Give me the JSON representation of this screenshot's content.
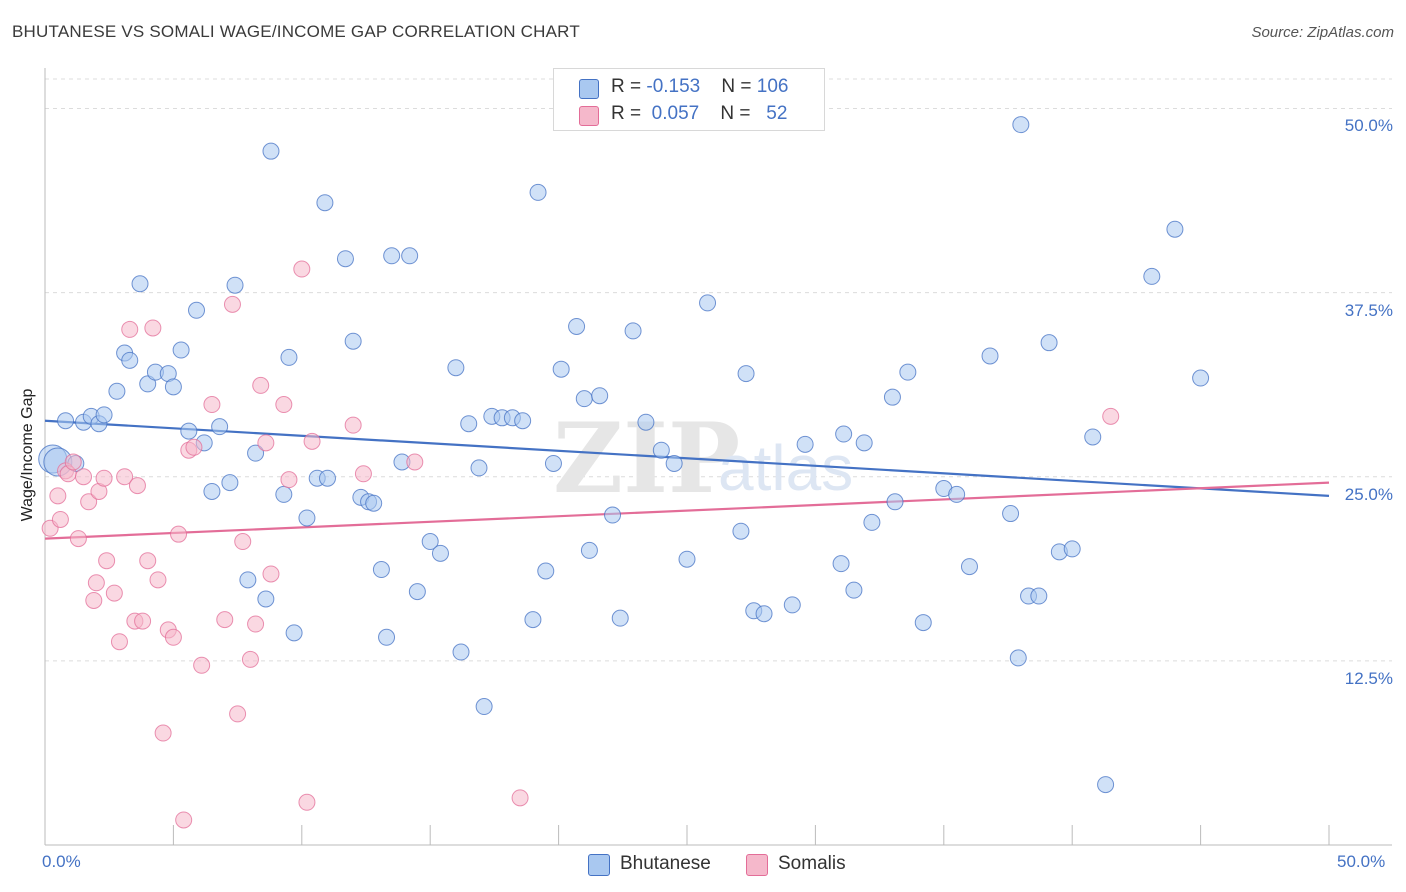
{
  "title": "BHUTANESE VS SOMALI WAGE/INCOME GAP CORRELATION CHART",
  "source": "Source: ZipAtlas.com",
  "legend_top": {
    "rows": [
      {
        "r_label": "R = ",
        "r_value": "-0.153",
        "n_label": "N = ",
        "n_value": "106",
        "color": "#a9c8f0"
      },
      {
        "r_label": "R = ",
        "r_value": " 0.057",
        "n_label": "N = ",
        "n_value": "  52",
        "color": "#f5b8cb"
      }
    ]
  },
  "chart_data": {
    "type": "scatter",
    "title": "BHUTANESE VS SOMALI WAGE/INCOME GAP CORRELATION CHART",
    "xlabel": "",
    "ylabel": "Wage/Income Gap",
    "xlim": [
      0,
      50
    ],
    "ylim": [
      0,
      52
    ],
    "x_tick_labels": [
      "0.0%",
      "50.0%"
    ],
    "y_ticks": [
      12.5,
      25.0,
      37.5,
      50.0
    ],
    "y_tick_labels": [
      "12.5%",
      "25.0%",
      "37.5%",
      "50.0%"
    ],
    "grid": true,
    "legend_position": "bottom",
    "series": [
      {
        "name": "Bhutanese",
        "color": "#4472c4",
        "fill": "#a9c8f0",
        "trend": {
          "x": [
            0,
            50
          ],
          "y": [
            28.8,
            23.7
          ]
        },
        "points": [
          [
            0.3,
            26.2
          ],
          [
            0.5,
            26
          ],
          [
            1.2,
            25.9
          ],
          [
            0.8,
            28.8
          ],
          [
            1.5,
            28.7
          ],
          [
            1.8,
            29.1
          ],
          [
            2.1,
            28.6
          ],
          [
            2.3,
            29.2
          ],
          [
            2.8,
            30.8
          ],
          [
            3.1,
            33.4
          ],
          [
            3.3,
            32.9
          ],
          [
            3.7,
            38.1
          ],
          [
            4.0,
            31.3
          ],
          [
            4.3,
            32.1
          ],
          [
            4.8,
            32
          ],
          [
            5.0,
            31.1
          ],
          [
            5.3,
            33.6
          ],
          [
            5.6,
            28.1
          ],
          [
            5.9,
            36.3
          ],
          [
            6.2,
            27.3
          ],
          [
            6.5,
            24
          ],
          [
            6.8,
            28.4
          ],
          [
            7.2,
            24.6
          ],
          [
            7.4,
            38
          ],
          [
            7.9,
            18
          ],
          [
            8.2,
            26.6
          ],
          [
            8.6,
            16.7
          ],
          [
            8.8,
            47.1
          ],
          [
            9.3,
            23.8
          ],
          [
            9.5,
            33.1
          ],
          [
            9.7,
            14.4
          ],
          [
            10.2,
            22.2
          ],
          [
            10.6,
            24.9
          ],
          [
            10.9,
            43.6
          ],
          [
            11.0,
            24.9
          ],
          [
            11.7,
            39.8
          ],
          [
            12.0,
            34.2
          ],
          [
            12.3,
            23.6
          ],
          [
            12.6,
            23.3
          ],
          [
            12.8,
            23.2
          ],
          [
            13.1,
            18.7
          ],
          [
            13.3,
            14.1
          ],
          [
            13.5,
            40
          ],
          [
            14.2,
            40
          ],
          [
            13.9,
            26
          ],
          [
            14.5,
            17.2
          ],
          [
            15.0,
            20.6
          ],
          [
            15.4,
            19.8
          ],
          [
            16.0,
            32.4
          ],
          [
            16.2,
            13.1
          ],
          [
            16.5,
            28.6
          ],
          [
            16.9,
            25.6
          ],
          [
            17.1,
            9.4
          ],
          [
            17.4,
            29.1
          ],
          [
            17.8,
            29
          ],
          [
            18.2,
            29
          ],
          [
            18.6,
            28.8
          ],
          [
            19.0,
            15.3
          ],
          [
            19.2,
            44.3
          ],
          [
            19.5,
            18.6
          ],
          [
            19.8,
            25.9
          ],
          [
            20.1,
            32.3
          ],
          [
            20.7,
            35.2
          ],
          [
            21.0,
            30.3
          ],
          [
            21.2,
            20
          ],
          [
            21.6,
            30.5
          ],
          [
            22.1,
            22.4
          ],
          [
            22.4,
            15.4
          ],
          [
            22.9,
            34.9
          ],
          [
            23.4,
            28.7
          ],
          [
            24.0,
            26.8
          ],
          [
            24.5,
            25.9
          ],
          [
            25.0,
            19.4
          ],
          [
            25.8,
            36.8
          ],
          [
            27.1,
            21.3
          ],
          [
            27.3,
            32
          ],
          [
            27.6,
            15.9
          ],
          [
            28.0,
            15.7
          ],
          [
            29.1,
            16.3
          ],
          [
            29.6,
            27.2
          ],
          [
            31.1,
            27.9
          ],
          [
            31.0,
            19.1
          ],
          [
            31.5,
            17.3
          ],
          [
            31.9,
            27.3
          ],
          [
            32.2,
            21.9
          ],
          [
            33.0,
            30.4
          ],
          [
            33.1,
            23.3
          ],
          [
            33.6,
            32.1
          ],
          [
            34.2,
            15.1
          ],
          [
            35.0,
            24.2
          ],
          [
            35.5,
            23.8
          ],
          [
            36.8,
            33.2
          ],
          [
            36.0,
            18.9
          ],
          [
            37.6,
            22.5
          ],
          [
            37.9,
            12.7
          ],
          [
            38.3,
            16.9
          ],
          [
            38.7,
            16.9
          ],
          [
            38.0,
            48.9
          ],
          [
            39.1,
            34.1
          ],
          [
            39.5,
            19.9
          ],
          [
            40.0,
            20.1
          ],
          [
            40.8,
            27.7
          ],
          [
            41.3,
            4.1
          ],
          [
            43.1,
            38.6
          ],
          [
            44.0,
            41.8
          ],
          [
            45.0,
            31.7
          ]
        ]
      },
      {
        "name": "Somalis",
        "color": "#e36d98",
        "fill": "#f5b8cb",
        "trend": {
          "x": [
            0,
            50
          ],
          "y": [
            20.8,
            24.6
          ]
        },
        "points": [
          [
            0.2,
            21.5
          ],
          [
            0.5,
            23.7
          ],
          [
            0.6,
            22.1
          ],
          [
            0.8,
            25.4
          ],
          [
            0.9,
            25.2
          ],
          [
            1.1,
            26
          ],
          [
            1.3,
            20.8
          ],
          [
            1.5,
            25
          ],
          [
            1.7,
            23.3
          ],
          [
            1.9,
            16.6
          ],
          [
            2.0,
            17.8
          ],
          [
            2.1,
            24
          ],
          [
            2.3,
            24.9
          ],
          [
            2.4,
            19.3
          ],
          [
            2.7,
            17.1
          ],
          [
            2.9,
            13.8
          ],
          [
            3.1,
            25
          ],
          [
            3.3,
            35
          ],
          [
            3.5,
            15.2
          ],
          [
            3.6,
            24.4
          ],
          [
            3.8,
            15.2
          ],
          [
            4.0,
            19.3
          ],
          [
            4.2,
            35.1
          ],
          [
            4.4,
            18
          ],
          [
            4.6,
            7.6
          ],
          [
            4.8,
            14.6
          ],
          [
            5.0,
            14.1
          ],
          [
            5.2,
            21.1
          ],
          [
            5.4,
            1.7
          ],
          [
            5.6,
            26.8
          ],
          [
            5.8,
            27
          ],
          [
            6.1,
            12.2
          ],
          [
            6.5,
            29.9
          ],
          [
            7.0,
            15.3
          ],
          [
            7.3,
            36.7
          ],
          [
            7.5,
            8.9
          ],
          [
            7.7,
            20.6
          ],
          [
            8.0,
            12.6
          ],
          [
            8.2,
            15
          ],
          [
            8.4,
            31.2
          ],
          [
            8.6,
            27.3
          ],
          [
            8.8,
            18.4
          ],
          [
            9.3,
            29.9
          ],
          [
            9.5,
            24.8
          ],
          [
            10.0,
            39.1
          ],
          [
            10.2,
            2.9
          ],
          [
            10.4,
            27.4
          ],
          [
            12.0,
            28.5
          ],
          [
            12.4,
            25.2
          ],
          [
            14.4,
            26
          ],
          [
            18.5,
            3.2
          ],
          [
            41.5,
            29.1
          ]
        ]
      }
    ]
  },
  "watermark": {
    "zip": "ZIP",
    "atlas": "atlas"
  },
  "bottom_legend": [
    {
      "label": "Bhutanese",
      "color": "#a9c8f0",
      "border": "#4472c4"
    },
    {
      "label": "Somalis",
      "color": "#f5b8cb",
      "border": "#e36d98"
    }
  ]
}
